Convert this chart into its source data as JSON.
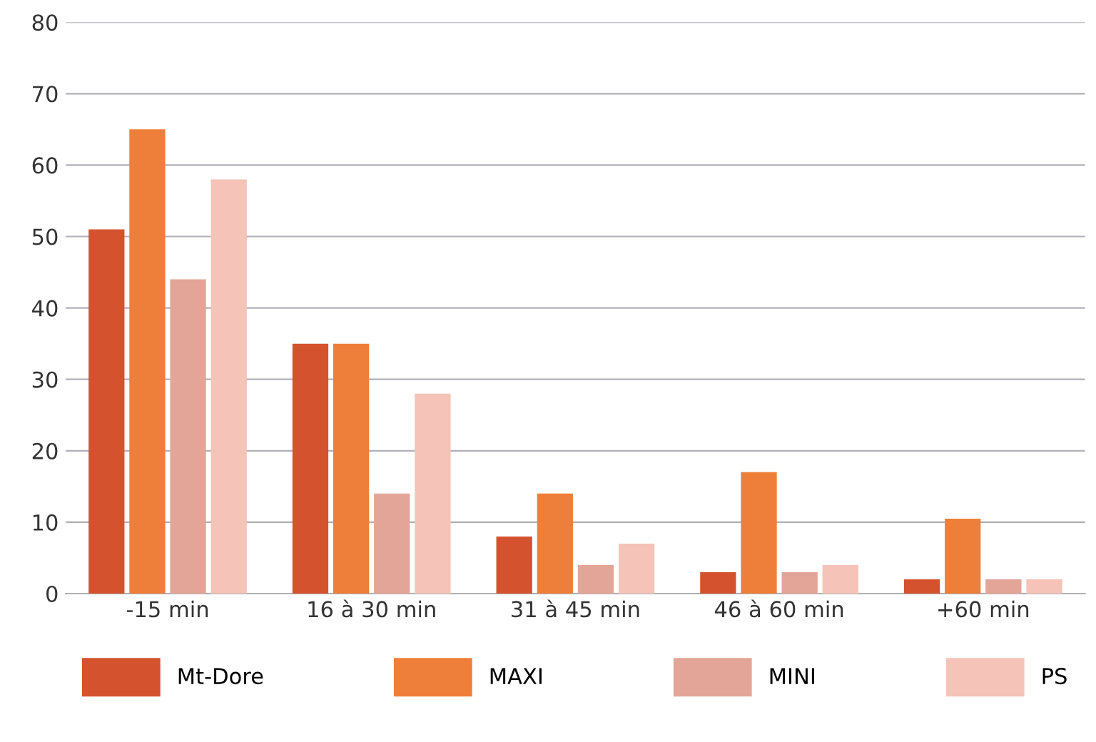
{
  "chart_data": {
    "type": "bar",
    "categories": [
      "-15 min",
      "16 à 30 min",
      "31 à 45 min",
      "46 à 60 min",
      "+60 min"
    ],
    "series": [
      {
        "name": "Mt-Dore",
        "color": "#d4532e",
        "values": [
          51,
          35,
          8,
          3,
          2
        ]
      },
      {
        "name": "MAXI",
        "color": "#ee7f3a",
        "values": [
          65,
          35,
          14,
          17,
          10.5
        ]
      },
      {
        "name": "MINI",
        "color": "#e3a597",
        "values": [
          44,
          14,
          4,
          3,
          2
        ]
      },
      {
        "name": "PS",
        "color": "#f5c3b8",
        "values": [
          58,
          28,
          7,
          4,
          2
        ]
      }
    ],
    "ylim": [
      0,
      80
    ],
    "yticks": [
      0,
      10,
      20,
      30,
      40,
      50,
      60,
      70,
      80
    ],
    "grid": "y",
    "legend": "bottom"
  }
}
